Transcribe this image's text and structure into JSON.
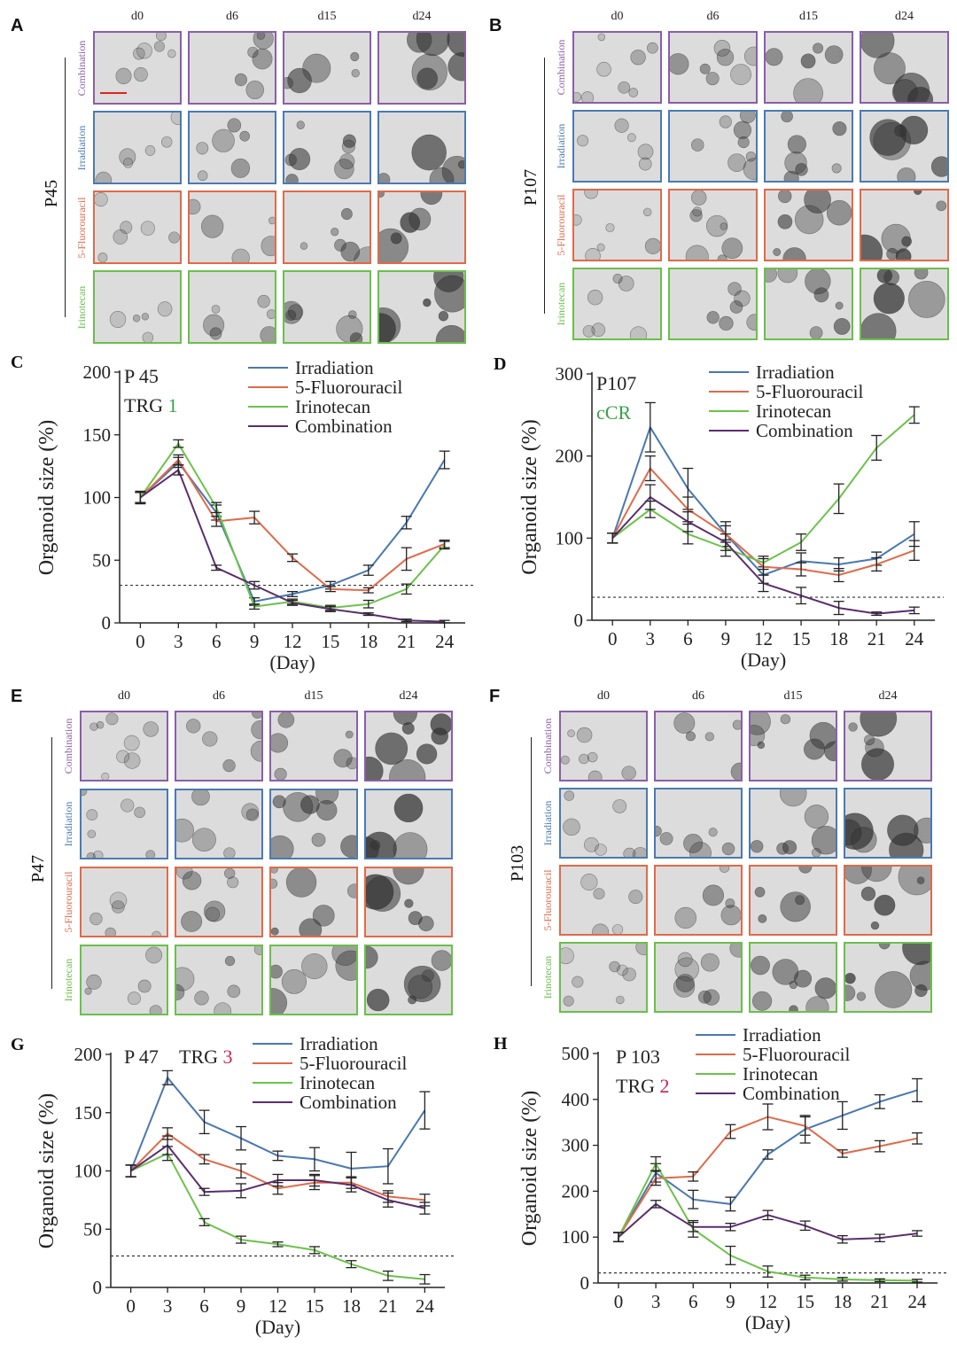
{
  "micro_panels": [
    {
      "letter": "A",
      "patient": "P45",
      "days": [
        "d0",
        "d6",
        "d15",
        "d24"
      ],
      "rows": [
        {
          "label": "Combination",
          "color": "#8b5ea8"
        },
        {
          "label": "Irradiation",
          "color": "#4a7ab3"
        },
        {
          "label": "5-Fluorouracil",
          "color": "#e06a4a"
        },
        {
          "label": "Irinotecan",
          "color": "#6abf4b"
        }
      ]
    },
    {
      "letter": "B",
      "patient": "P107",
      "days": [
        "d0",
        "d6",
        "d15",
        "d24"
      ],
      "rows": [
        {
          "label": "Combination",
          "color": "#8b5ea8"
        },
        {
          "label": "Irradiation",
          "color": "#4a7ab3"
        },
        {
          "label": "5-Fluorouracil",
          "color": "#e06a4a"
        },
        {
          "label": "Irinotecan",
          "color": "#6abf4b"
        }
      ]
    },
    {
      "letter": "E",
      "patient": "P47",
      "days": [
        "d0",
        "d6",
        "d15",
        "d24"
      ],
      "rows": [
        {
          "label": "Combination",
          "color": "#8b5ea8"
        },
        {
          "label": "Irradiation",
          "color": "#4a7ab3"
        },
        {
          "label": "5-Fluorouracil",
          "color": "#e06a4a"
        },
        {
          "label": "Irinotecan",
          "color": "#6abf4b"
        }
      ]
    },
    {
      "letter": "F",
      "patient": "P103",
      "days": [
        "d0",
        "d6",
        "d15",
        "d24"
      ],
      "rows": [
        {
          "label": "Combination",
          "color": "#8b5ea8"
        },
        {
          "label": "Irradiation",
          "color": "#4a7ab3"
        },
        {
          "label": "5-Fluorouracil",
          "color": "#e06a4a"
        },
        {
          "label": "Irinotecan",
          "color": "#6abf4b"
        }
      ]
    }
  ],
  "chart_data": [
    {
      "letter": "C",
      "type": "line",
      "ylabel": "Organoid size (%)",
      "xlabel": "(Day)",
      "ylim": [
        0,
        200
      ],
      "yticks": [
        0,
        50,
        100,
        150,
        200
      ],
      "x": [
        0,
        3,
        6,
        9,
        12,
        15,
        18,
        21,
        24
      ],
      "threshold": 30,
      "title_main": "P 45",
      "title_sub": "TRG",
      "title_sub_value": "1",
      "title_sub_value_color": "#3aa04a",
      "legend_position": "top-right",
      "series": [
        {
          "name": "Irradiation",
          "color": "#4a78b0",
          "values": [
            100,
            128,
            88,
            17,
            23,
            30,
            42,
            80,
            130
          ],
          "errors": [
            4,
            4,
            6,
            3,
            2,
            3,
            4,
            5,
            7
          ]
        },
        {
          "name": "5-Fluorouracil",
          "color": "#e06a4a",
          "values": [
            100,
            130,
            81,
            84,
            52,
            27,
            26,
            51,
            63
          ],
          "errors": [
            4,
            4,
            4,
            5,
            3,
            2,
            2,
            9,
            3
          ]
        },
        {
          "name": "Irinotecan",
          "color": "#6cc24a",
          "values": [
            100,
            143,
            92,
            13,
            17,
            12,
            15,
            27,
            62
          ],
          "errors": [
            5,
            3,
            4,
            2,
            2,
            2,
            3,
            4,
            3
          ]
        },
        {
          "name": "Combination",
          "color": "#5a2d6e",
          "values": [
            100,
            122,
            44,
            30,
            16,
            11,
            7,
            2,
            1
          ],
          "errors": [
            4,
            4,
            2,
            3,
            2,
            2,
            1,
            1,
            1
          ]
        }
      ]
    },
    {
      "letter": "D",
      "type": "line",
      "ylabel": "Organoid size (%)",
      "xlabel": "(Day)",
      "ylim": [
        0,
        300
      ],
      "yticks": [
        0,
        100,
        200,
        300
      ],
      "x": [
        0,
        3,
        6,
        9,
        12,
        15,
        18,
        21,
        24
      ],
      "threshold": 28,
      "title_main": "P107",
      "title_sub": "",
      "title_sub_value": "cCR",
      "title_sub_value_color": "#3aa04a",
      "legend_position": "top-right",
      "series": [
        {
          "name": "Irradiation",
          "color": "#4a78b0",
          "values": [
            100,
            235,
            160,
            105,
            55,
            72,
            68,
            75,
            105
          ],
          "errors": [
            6,
            30,
            25,
            15,
            10,
            10,
            8,
            8,
            15
          ]
        },
        {
          "name": "5-Fluorouracil",
          "color": "#e06a4a",
          "values": [
            100,
            185,
            135,
            105,
            65,
            62,
            55,
            68,
            85
          ],
          "errors": [
            6,
            15,
            15,
            10,
            10,
            8,
            8,
            8,
            12
          ]
        },
        {
          "name": "Irinotecan",
          "color": "#6cc24a",
          "values": [
            100,
            135,
            105,
            88,
            70,
            95,
            148,
            210,
            250
          ],
          "errors": [
            6,
            10,
            12,
            10,
            8,
            10,
            18,
            15,
            10
          ]
        },
        {
          "name": "Combination",
          "color": "#5a2d6e",
          "values": [
            100,
            150,
            120,
            95,
            45,
            30,
            15,
            8,
            12
          ],
          "errors": [
            6,
            15,
            12,
            10,
            10,
            10,
            8,
            2,
            4
          ]
        }
      ]
    },
    {
      "letter": "G",
      "type": "line",
      "ylabel": "Organoid size (%)",
      "xlabel": "(Day)",
      "ylim": [
        0,
        200
      ],
      "yticks": [
        0,
        50,
        100,
        150,
        200
      ],
      "x": [
        0,
        3,
        6,
        9,
        12,
        15,
        18,
        21,
        24
      ],
      "threshold": 27,
      "title_main": "P 47",
      "title_sub": "TRG",
      "title_sub_value": "3",
      "title_sub_value_color": "#cc2255",
      "legend_position": "top-right",
      "series": [
        {
          "name": "Irradiation",
          "color": "#4a78b0",
          "values": [
            100,
            180,
            142,
            128,
            113,
            110,
            102,
            104,
            152
          ],
          "errors": [
            5,
            6,
            10,
            10,
            4,
            10,
            14,
            15,
            16
          ]
        },
        {
          "name": "5-Fluorouracil",
          "color": "#e06a4a",
          "values": [
            100,
            132,
            110,
            100,
            85,
            90,
            90,
            78,
            75
          ],
          "errors": [
            5,
            5,
            4,
            6,
            5,
            6,
            5,
            5,
            5
          ]
        },
        {
          "name": "Irinotecan",
          "color": "#6cc24a",
          "values": [
            100,
            115,
            56,
            41,
            37,
            32,
            20,
            10,
            7
          ],
          "errors": [
            5,
            6,
            3,
            3,
            2,
            3,
            3,
            4,
            4
          ]
        },
        {
          "name": "Combination",
          "color": "#5a2d6e",
          "values": [
            100,
            122,
            82,
            83,
            92,
            92,
            88,
            75,
            68
          ],
          "errors": [
            5,
            8,
            3,
            6,
            5,
            5,
            6,
            6,
            5
          ]
        }
      ]
    },
    {
      "letter": "H",
      "type": "line",
      "ylabel": "Organoid size (%)",
      "xlabel": "(Day)",
      "ylim": [
        0,
        500
      ],
      "yticks": [
        0,
        100,
        200,
        300,
        400,
        500
      ],
      "x": [
        0,
        3,
        6,
        9,
        12,
        15,
        18,
        21,
        24
      ],
      "threshold": 22,
      "title_main": "P 103",
      "title_sub": "TRG",
      "title_sub_value": "2",
      "title_sub_value_color": "#cc2255",
      "legend_position": "top-right",
      "series": [
        {
          "name": "Irradiation",
          "color": "#4a78b0",
          "values": [
            100,
            240,
            182,
            172,
            280,
            335,
            365,
            395,
            420
          ],
          "errors": [
            10,
            20,
            20,
            15,
            10,
            30,
            30,
            15,
            25
          ]
        },
        {
          "name": "5-Fluorouracil",
          "color": "#e06a4a",
          "values": [
            100,
            228,
            232,
            330,
            362,
            342,
            282,
            298,
            315
          ],
          "errors": [
            10,
            15,
            10,
            15,
            28,
            20,
            8,
            12,
            12
          ]
        },
        {
          "name": "Irinotecan",
          "color": "#6cc24a",
          "values": [
            100,
            260,
            118,
            60,
            25,
            12,
            8,
            6,
            5
          ],
          "errors": [
            10,
            15,
            18,
            20,
            12,
            5,
            4,
            3,
            3
          ]
        },
        {
          "name": "Combination",
          "color": "#5a2d6e",
          "values": [
            100,
            172,
            122,
            122,
            148,
            125,
            95,
            98,
            108
          ],
          "errors": [
            10,
            8,
            10,
            8,
            10,
            10,
            8,
            8,
            6
          ]
        }
      ]
    }
  ]
}
